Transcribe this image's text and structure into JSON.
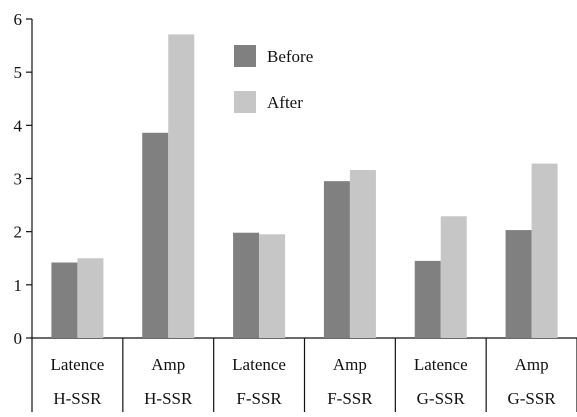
{
  "chart_data": {
    "type": "bar",
    "categories": [
      [
        "Latence",
        "H-SSR"
      ],
      [
        "Amp",
        "H-SSR"
      ],
      [
        "Latence",
        "F-SSR"
      ],
      [
        "Amp",
        "F-SSR"
      ],
      [
        "Latence",
        "G-SSR"
      ],
      [
        "Amp",
        "G-SSR"
      ]
    ],
    "series": [
      {
        "name": "Before",
        "color": "#808080",
        "values": [
          1.42,
          3.86,
          1.98,
          2.95,
          1.45,
          2.03
        ]
      },
      {
        "name": "After",
        "color": "#c6c6c6",
        "values": [
          1.5,
          5.71,
          1.95,
          3.16,
          2.29,
          3.28
        ]
      }
    ],
    "ylim": [
      0,
      6
    ],
    "yticks": [
      0,
      1,
      2,
      3,
      4,
      5,
      6
    ],
    "grid": false,
    "legend_position": "top-center",
    "title": "",
    "xlabel": "",
    "ylabel": ""
  }
}
